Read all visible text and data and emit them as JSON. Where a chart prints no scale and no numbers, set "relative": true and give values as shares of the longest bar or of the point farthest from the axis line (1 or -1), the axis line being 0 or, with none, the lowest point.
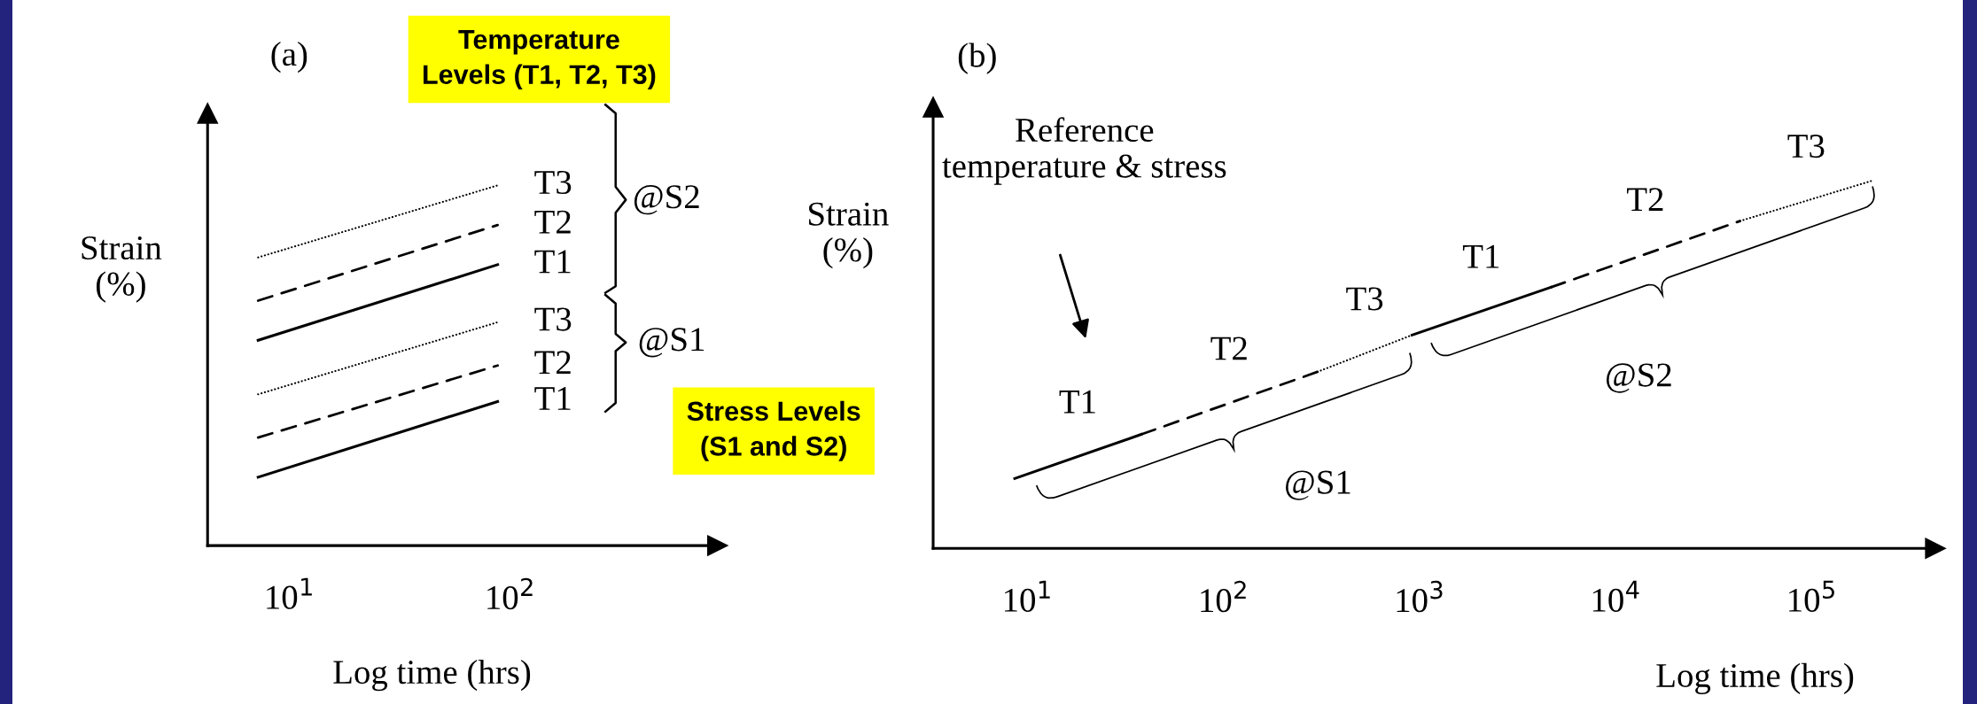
{
  "chart_data": [
    {
      "type": "line",
      "title": "(a)",
      "xlabel": "Log time (hrs)",
      "ylabel": "Strain\n(%)",
      "relative": true,
      "log": "x",
      "xlim": [
        4.25,
        871
      ],
      "xticks": [
        {
          "value": 10,
          "label": "10$^{1}$"
        },
        {
          "value": 100,
          "label": "10$^{2}$"
        }
      ],
      "annotations": [
        "@S2",
        "@S1",
        "Temperature\nLevels (T1, T2, T3)",
        "Stress Levels\n(S1 and S2)"
      ],
      "series": [
        {
          "name": "T1",
          "color": "#000000",
          "line_style": "solid",
          "x": [
            7.2,
            87.7
          ],
          "values": [
            0.19,
            0.4
          ]
        },
        {
          "name": "T2",
          "color": "#000000",
          "line_style": "dashed",
          "x": [
            7.2,
            87.7
          ],
          "values": [
            0.3,
            0.5
          ]
        },
        {
          "name": "T3",
          "color": "#000000",
          "line_style": "dotted",
          "x": [
            7.2,
            87.7
          ],
          "values": [
            0.42,
            0.62
          ]
        },
        {
          "name": "T1",
          "color": "#000000",
          "line_style": "solid",
          "x": [
            7.2,
            87.7
          ],
          "values": [
            0.57,
            0.78
          ]
        },
        {
          "name": "T2",
          "color": "#000000",
          "line_style": "dashed",
          "x": [
            7.2,
            87.7
          ],
          "values": [
            0.68,
            0.89
          ]
        },
        {
          "name": "T3",
          "color": "#000000",
          "line_style": "dotted",
          "x": [
            7.2,
            87.7
          ],
          "values": [
            0.8,
            1.0
          ]
        }
      ]
    },
    {
      "type": "line",
      "title": "(b)",
      "xlabel": "Log time (hrs)",
      "ylabel": "Strain\n(%)",
      "relative": true,
      "log": "x",
      "xlim": [
        3.3,
        427000
      ],
      "xticks": [
        {
          "value": 10,
          "label": "10$^{1}$"
        },
        {
          "value": 100,
          "label": "10$^{2}$"
        },
        {
          "value": 1000,
          "label": "10$^{3}$"
        },
        {
          "value": 10000,
          "label": "10$^{4}$"
        },
        {
          "value": 100000,
          "label": "10$^{5}$"
        }
      ],
      "annotations": [
        "Reference\ntemperature & stress",
        "@S1",
        "@S2"
      ],
      "series": [
        {
          "name": "T1",
          "color": "#000000",
          "line_style": "solid",
          "x": [
            8.6,
            38
          ],
          "values": [
            0.19,
            0.31
          ]
        },
        {
          "name": "T2",
          "color": "#000000",
          "line_style": "dashed",
          "x": [
            38,
            301
          ],
          "values": [
            0.31,
            0.48
          ]
        },
        {
          "name": "T3",
          "color": "#000000",
          "line_style": "dotted",
          "x": [
            301,
            914
          ],
          "values": [
            0.48,
            0.58
          ]
        },
        {
          "name": "T1",
          "color": "#000000",
          "line_style": "solid",
          "x": [
            914,
            4670
          ],
          "values": [
            0.58,
            0.71
          ]
        },
        {
          "name": "T2",
          "color": "#000000",
          "line_style": "dashed",
          "x": [
            4670,
            43000
          ],
          "values": [
            0.71,
            0.89
          ]
        },
        {
          "name": "T3",
          "color": "#000000",
          "line_style": "dotted",
          "x": [
            43000,
            204000
          ],
          "values": [
            0.89,
            1.0
          ]
        }
      ]
    }
  ]
}
